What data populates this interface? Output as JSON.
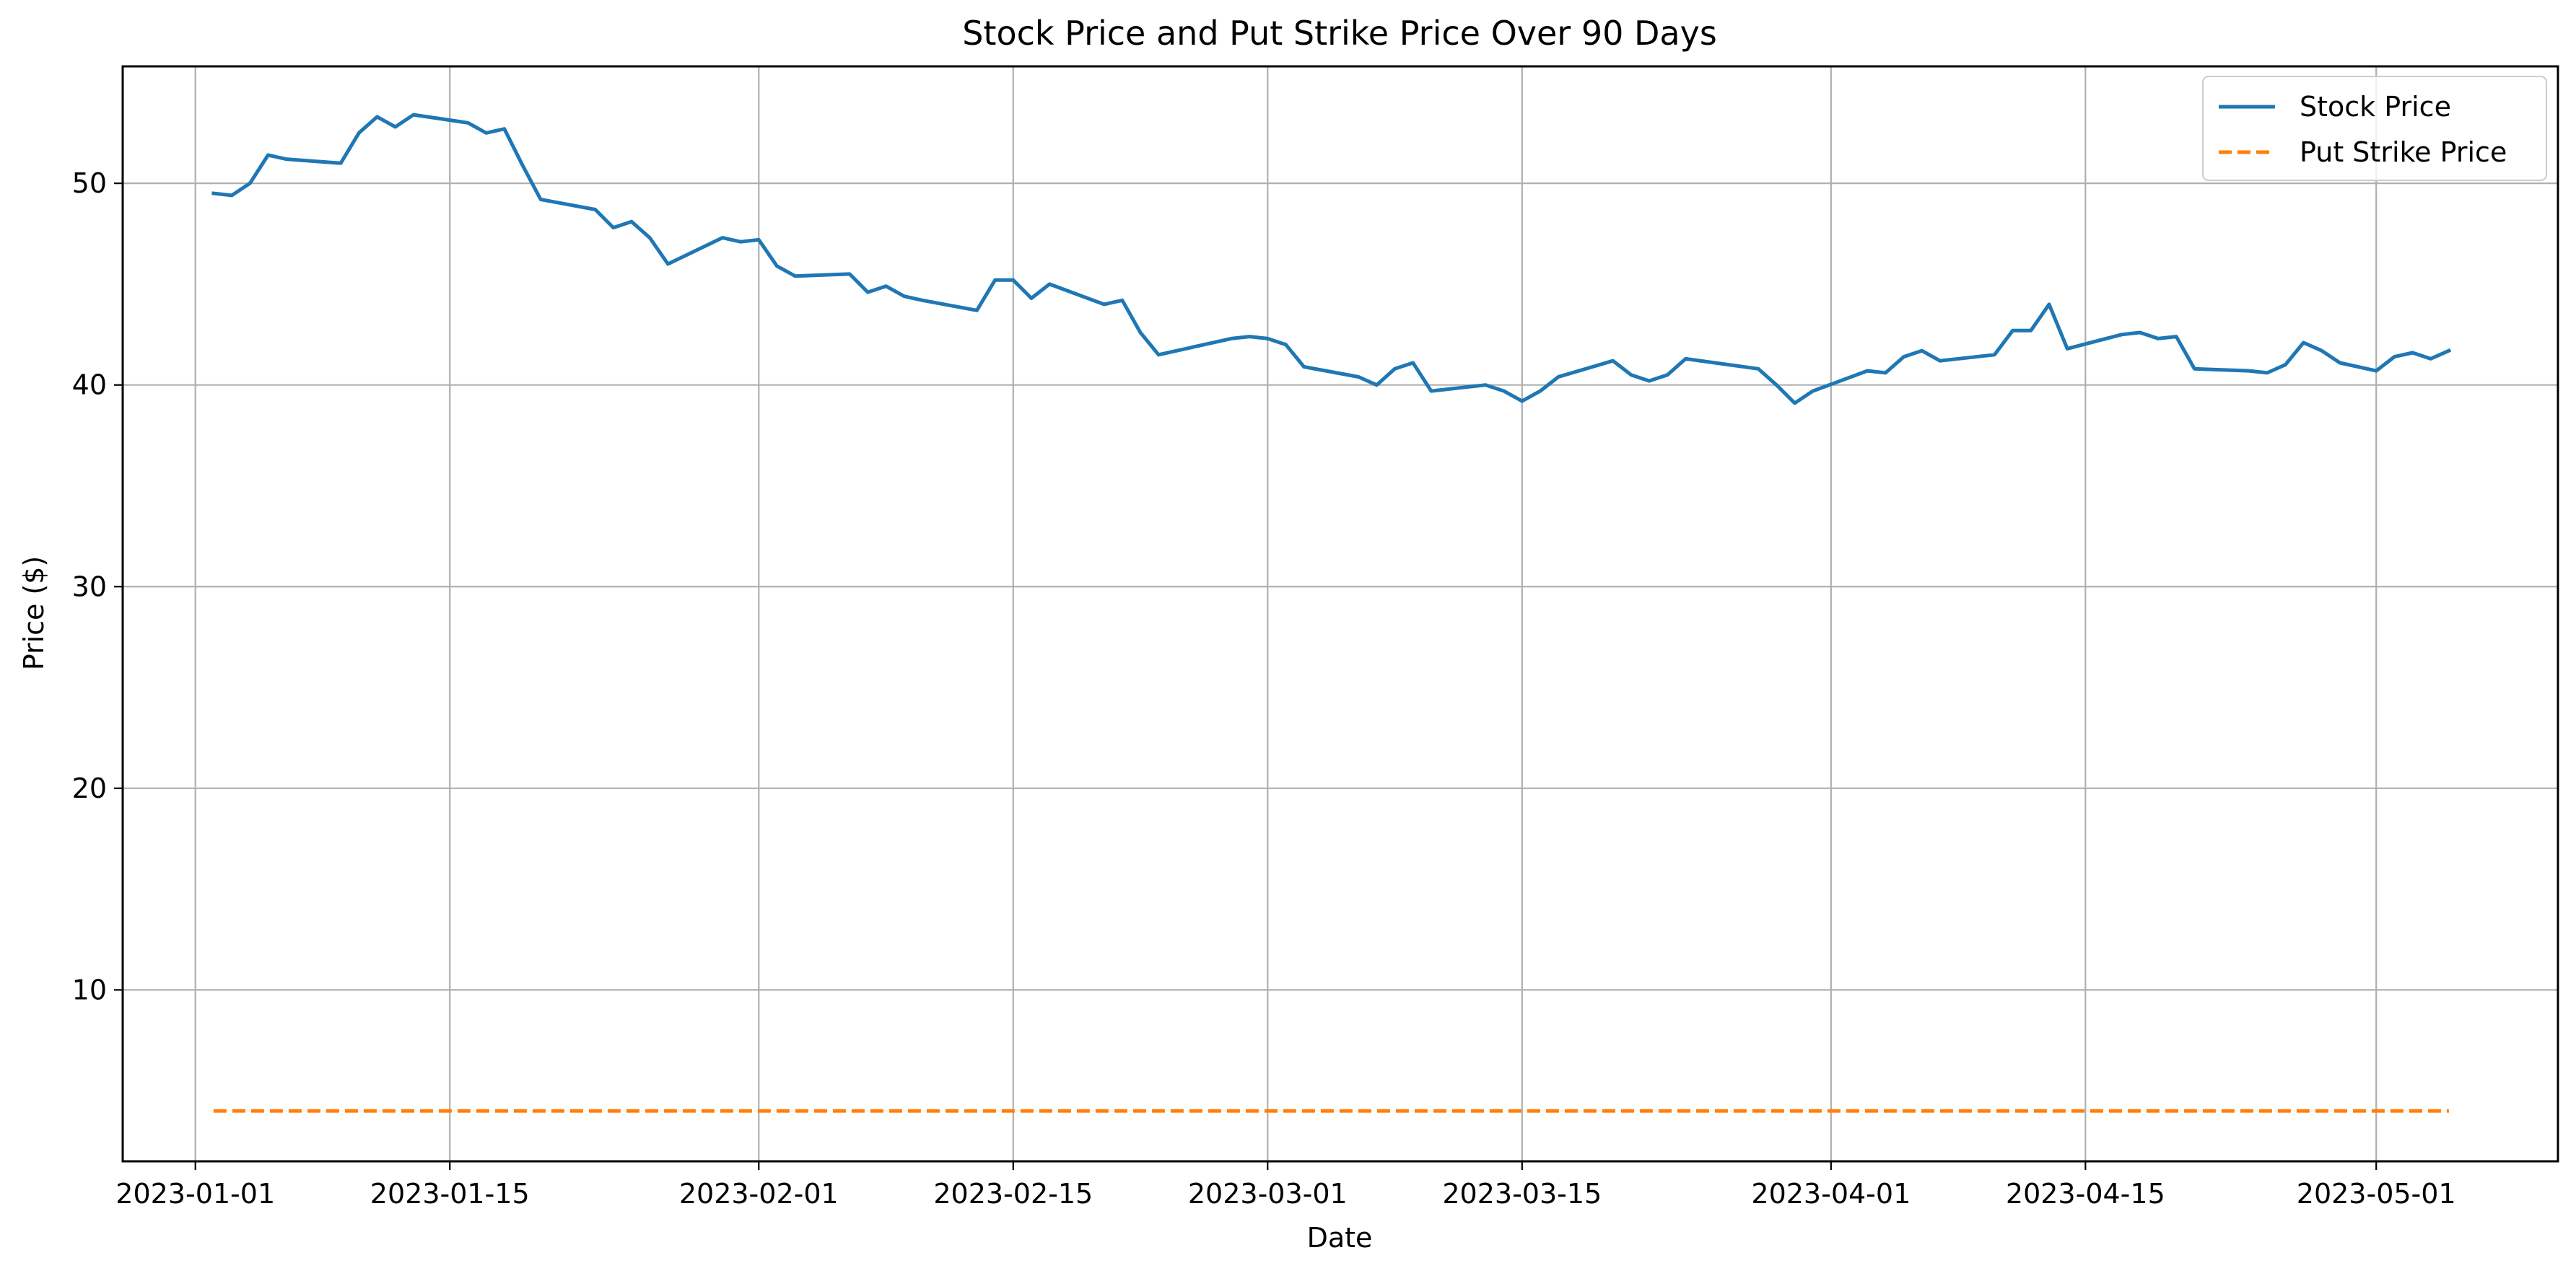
{
  "chart_data": {
    "type": "line",
    "title": "Stock Price and Put Strike Price Over 90 Days",
    "xlabel": "Date",
    "ylabel": "Price ($)",
    "xlim": [
      "2022-12-28",
      "2023-05-11"
    ],
    "ylim": [
      1.5,
      55.8
    ],
    "grid": true,
    "legend_position": "top-right",
    "x_ticks": [
      "2023-01-01",
      "2023-01-15",
      "2023-02-01",
      "2023-02-15",
      "2023-03-01",
      "2023-03-15",
      "2023-04-01",
      "2023-04-15",
      "2023-05-01"
    ],
    "x_tick_labels": [
      "2023-01-01",
      "2023-01-15",
      "2023-02-01",
      "2023-02-15",
      "2023-03-01",
      "2023-03-15",
      "2023-04-01",
      "2023-04-15",
      "2023-05-01"
    ],
    "y_ticks": [
      10,
      20,
      30,
      40,
      50
    ],
    "y_tick_labels": [
      "10",
      "20",
      "30",
      "40",
      "50"
    ],
    "series": [
      {
        "name": "Stock Price",
        "color": "#1f77b4",
        "style": "solid",
        "points": [
          [
            "2023-01-02",
            49.5
          ],
          [
            "2023-01-03",
            49.4
          ],
          [
            "2023-01-04",
            50.0
          ],
          [
            "2023-01-05",
            51.4
          ],
          [
            "2023-01-06",
            51.2
          ],
          [
            "2023-01-09",
            51.0
          ],
          [
            "2023-01-10",
            52.5
          ],
          [
            "2023-01-11",
            53.3
          ],
          [
            "2023-01-12",
            52.8
          ],
          [
            "2023-01-13",
            53.4
          ],
          [
            "2023-01-16",
            53.0
          ],
          [
            "2023-01-17",
            52.5
          ],
          [
            "2023-01-18",
            52.7
          ],
          [
            "2023-01-19",
            50.9
          ],
          [
            "2023-01-20",
            49.2
          ],
          [
            "2023-01-23",
            48.7
          ],
          [
            "2023-01-24",
            47.8
          ],
          [
            "2023-01-25",
            48.1
          ],
          [
            "2023-01-26",
            47.3
          ],
          [
            "2023-01-27",
            46.0
          ],
          [
            "2023-01-30",
            47.3
          ],
          [
            "2023-01-31",
            47.1
          ],
          [
            "2023-02-01",
            47.2
          ],
          [
            "2023-02-02",
            45.9
          ],
          [
            "2023-02-03",
            45.4
          ],
          [
            "2023-02-06",
            45.5
          ],
          [
            "2023-02-07",
            44.6
          ],
          [
            "2023-02-08",
            44.9
          ],
          [
            "2023-02-09",
            44.4
          ],
          [
            "2023-02-10",
            44.2
          ],
          [
            "2023-02-13",
            43.7
          ],
          [
            "2023-02-14",
            45.2
          ],
          [
            "2023-02-15",
            45.2
          ],
          [
            "2023-02-16",
            44.3
          ],
          [
            "2023-02-17",
            45.0
          ],
          [
            "2023-02-20",
            44.0
          ],
          [
            "2023-02-21",
            44.2
          ],
          [
            "2023-02-22",
            42.6
          ],
          [
            "2023-02-23",
            41.5
          ],
          [
            "2023-02-27",
            42.3
          ],
          [
            "2023-02-28",
            42.4
          ],
          [
            "2023-03-01",
            42.3
          ],
          [
            "2023-03-02",
            42.0
          ],
          [
            "2023-03-03",
            40.9
          ],
          [
            "2023-03-06",
            40.4
          ],
          [
            "2023-03-07",
            40.0
          ],
          [
            "2023-03-08",
            40.8
          ],
          [
            "2023-03-09",
            41.1
          ],
          [
            "2023-03-10",
            39.7
          ],
          [
            "2023-03-13",
            40.0
          ],
          [
            "2023-03-14",
            39.7
          ],
          [
            "2023-03-15",
            39.2
          ],
          [
            "2023-03-16",
            39.7
          ],
          [
            "2023-03-17",
            40.4
          ],
          [
            "2023-03-20",
            41.2
          ],
          [
            "2023-03-21",
            40.5
          ],
          [
            "2023-03-22",
            40.2
          ],
          [
            "2023-03-23",
            40.5
          ],
          [
            "2023-03-24",
            41.3
          ],
          [
            "2023-03-28",
            40.8
          ],
          [
            "2023-03-29",
            40.0
          ],
          [
            "2023-03-30",
            39.1
          ],
          [
            "2023-03-31",
            39.7
          ],
          [
            "2023-04-03",
            40.7
          ],
          [
            "2023-04-04",
            40.6
          ],
          [
            "2023-04-05",
            41.4
          ],
          [
            "2023-04-06",
            41.7
          ],
          [
            "2023-04-07",
            41.2
          ],
          [
            "2023-04-10",
            41.5
          ],
          [
            "2023-04-11",
            42.7
          ],
          [
            "2023-04-12",
            42.7
          ],
          [
            "2023-04-13",
            44.0
          ],
          [
            "2023-04-14",
            41.8
          ],
          [
            "2023-04-17",
            42.5
          ],
          [
            "2023-04-18",
            42.6
          ],
          [
            "2023-04-19",
            42.3
          ],
          [
            "2023-04-20",
            42.4
          ],
          [
            "2023-04-21",
            40.8
          ],
          [
            "2023-04-24",
            40.7
          ],
          [
            "2023-04-25",
            40.6
          ],
          [
            "2023-04-26",
            41.0
          ],
          [
            "2023-04-27",
            42.1
          ],
          [
            "2023-04-28",
            41.7
          ],
          [
            "2023-04-29",
            41.1
          ],
          [
            "2023-05-01",
            40.7
          ],
          [
            "2023-05-02",
            41.4
          ],
          [
            "2023-05-03",
            41.6
          ],
          [
            "2023-05-04",
            41.3
          ],
          [
            "2023-05-05",
            41.7
          ]
        ]
      },
      {
        "name": "Put Strike Price",
        "color": "#ff7f0e",
        "style": "dashed",
        "points": [
          [
            "2023-01-02",
            4.0
          ],
          [
            "2023-05-05",
            4.0
          ]
        ]
      }
    ]
  }
}
